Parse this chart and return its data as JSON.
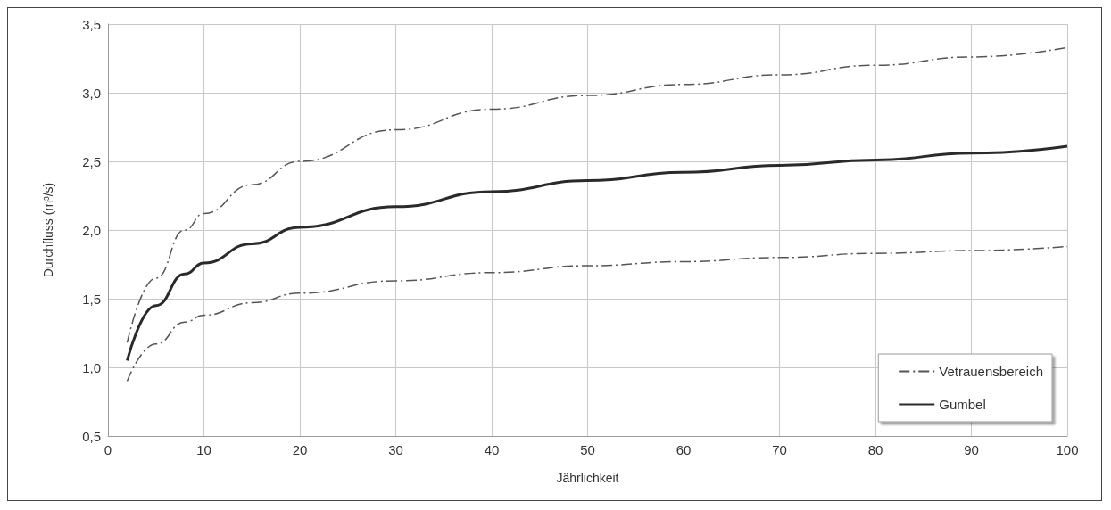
{
  "chart_data": {
    "type": "line",
    "xlabel": "Jährlichkeit",
    "ylabel": "Durchfluss (m³/s)",
    "xlim": [
      0,
      100
    ],
    "xticks": [
      0,
      10,
      20,
      30,
      40,
      50,
      60,
      70,
      80,
      90,
      100
    ],
    "ylim": [
      0.5,
      3.5
    ],
    "yticks": [
      {
        "value": 0.5,
        "label": "0,5"
      },
      {
        "value": 1,
        "label": "1,0"
      },
      {
        "value": 1.5,
        "label": "1,5"
      },
      {
        "value": 2,
        "label": "2,0"
      },
      {
        "value": 2.5,
        "label": "2,5"
      },
      {
        "value": 3,
        "label": "3,0"
      },
      {
        "value": 3.5,
        "label": "3,5"
      }
    ],
    "grid": true,
    "legend": "bottom right",
    "marker": "none",
    "series": [
      {
        "name": "Vetrauensbereich",
        "color": "#555555",
        "line_style": "dashed",
        "x": [
          2,
          5,
          8,
          10,
          15,
          20,
          30,
          40,
          50,
          60,
          70,
          80,
          90,
          100
        ],
        "values": [
          1.18,
          1.65,
          2.0,
          2.12,
          2.33,
          2.5,
          2.73,
          2.88,
          2.98,
          3.06,
          3.13,
          3.2,
          3.26,
          3.33
        ]
      },
      {
        "name": "Gumbel",
        "color": "#2a2a2a",
        "line_style": "solid",
        "x": [
          2,
          5,
          8,
          10,
          15,
          20,
          30,
          40,
          50,
          60,
          70,
          80,
          90,
          100
        ],
        "values": [
          1.05,
          1.45,
          1.68,
          1.76,
          1.9,
          2.02,
          2.17,
          2.28,
          2.36,
          2.42,
          2.47,
          2.51,
          2.56,
          2.61
        ]
      },
      {
        "color": "#555555",
        "line_style": "dashed",
        "x": [
          2,
          5,
          8,
          10,
          15,
          20,
          30,
          40,
          50,
          60,
          70,
          80,
          90,
          100
        ],
        "values": [
          0.9,
          1.17,
          1.33,
          1.38,
          1.47,
          1.54,
          1.63,
          1.69,
          1.74,
          1.77,
          1.8,
          1.83,
          1.85,
          1.88
        ]
      }
    ]
  }
}
